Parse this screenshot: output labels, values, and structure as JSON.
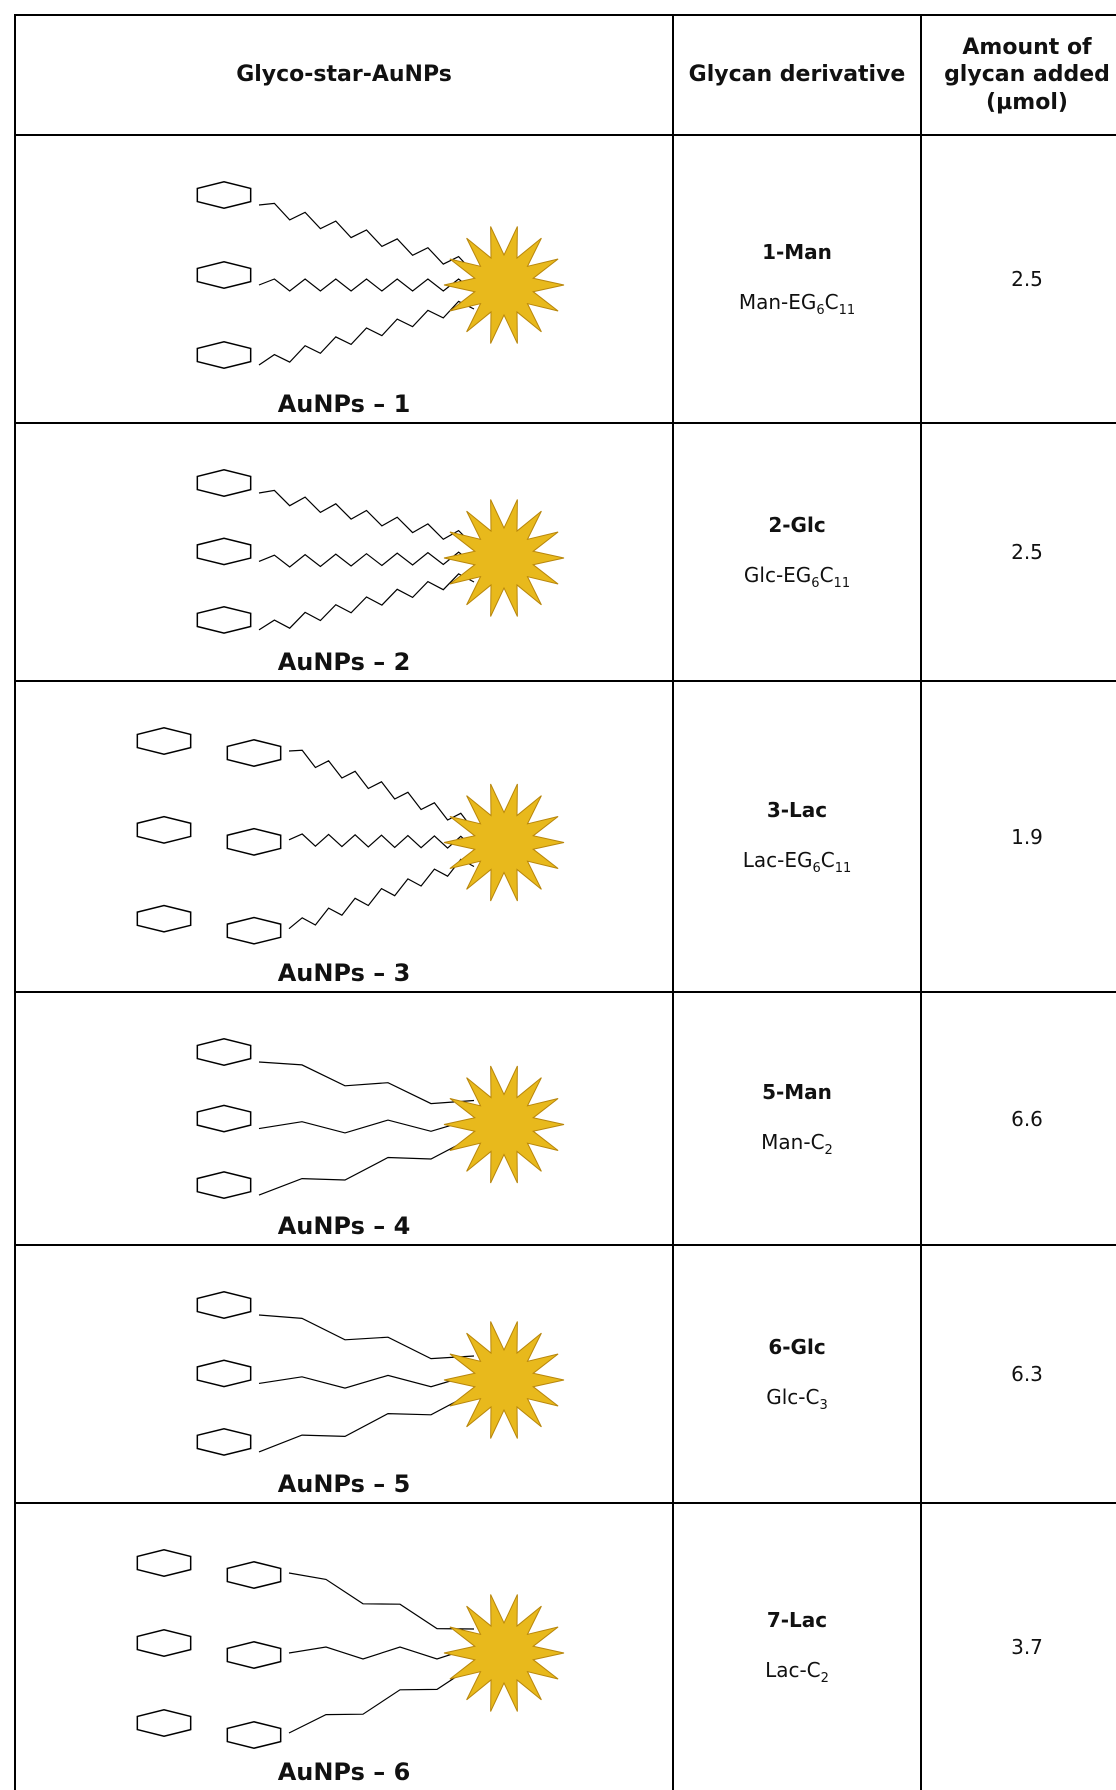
{
  "table": {
    "header": [
      "Glyco-star-AuNPs",
      "Glycan derivative",
      "Amount of glycan added (µmol)"
    ],
    "rows": [
      {
        "label": "AuNPs – 1",
        "derivative": "1-Man",
        "formula": [
          "Man-EG",
          "6",
          "C",
          "11"
        ],
        "amount": 2.5
      },
      {
        "label": "AuNPs – 2",
        "derivative": "2-Glc",
        "formula": [
          "Glc-EG",
          "6",
          "C",
          "11"
        ],
        "amount": 2.5
      },
      {
        "label": "AuNPs – 3",
        "derivative": "3-Lac",
        "formula": [
          "Lac-EG",
          "6",
          "C",
          "11"
        ],
        "amount": 1.9
      },
      {
        "label": "AuNPs – 4",
        "derivative": "5-Man",
        "formula": [
          "Man-C",
          "2"
        ],
        "amount": 6.6
      },
      {
        "label": "AuNPs – 5",
        "derivative": "6-Glc",
        "formula": [
          "Glc-C",
          "3"
        ],
        "amount": 6.3
      },
      {
        "label": "AuNPs – 6",
        "derivative": "7-Lac",
        "formula": [
          "Lac-C",
          "2"
        ],
        "amount": 3.7
      }
    ]
  }
}
